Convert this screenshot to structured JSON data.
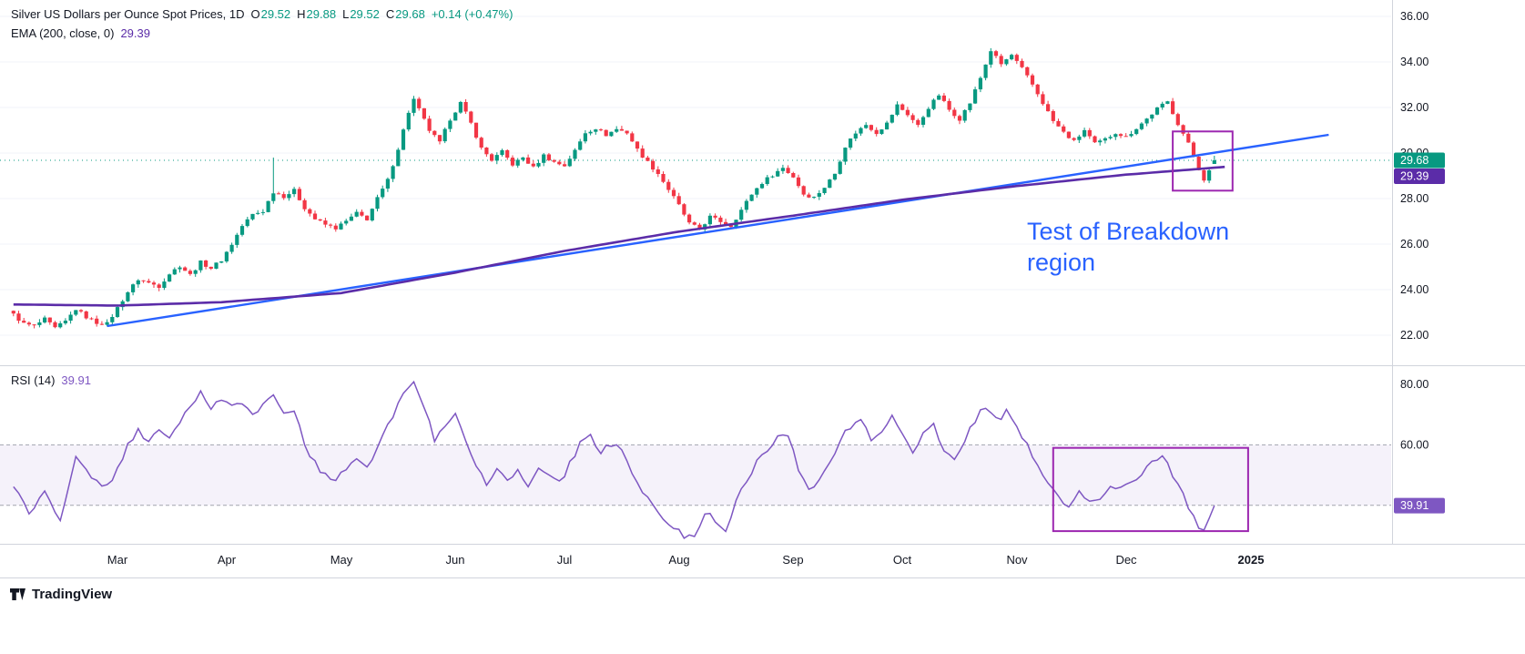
{
  "header": {
    "symbol_title": "Silver US Dollars per Ounce Spot Prices, 1D",
    "ohlc": {
      "open_label": "O",
      "open": "29.52",
      "high_label": "H",
      "high": "29.88",
      "low_label": "L",
      "low": "29.52",
      "close_label": "C",
      "close": "29.68",
      "change": "+0.14 (+0.47%)"
    },
    "ema_label": "EMA (200, close, 0)",
    "ema_value": "29.39"
  },
  "rsi_header": {
    "label": "RSI (14)",
    "value": "39.91"
  },
  "footer": {
    "brand": "TradingView"
  },
  "colors": {
    "up": "#089981",
    "down": "#F23645",
    "trendline": "#2962FF",
    "ema": "#5B2CA8",
    "rsi_line": "#7E57C2",
    "rsi_band_fill": "rgba(126,87,194,0.08)",
    "band_dash": "#A1A4AE",
    "annotation_box": "#9C27B0",
    "annotation_text": "#2962FF",
    "grid": "#F0F3FA",
    "axis_text": "#131722",
    "separator": "#D1D4DC"
  },
  "chart_data": {
    "type": "candlestick",
    "title": "Silver US Dollars per Ounce Spot Prices, 1D",
    "timeframe": "1D",
    "last_candle": {
      "open": 29.52,
      "high": 29.88,
      "low": 29.52,
      "close": 29.68,
      "change": 0.14,
      "change_pct": 0.47
    },
    "current_price": 29.68,
    "days_total": 231,
    "price_axis": {
      "ticks": [
        22,
        24,
        26,
        28,
        30,
        32,
        34,
        36
      ],
      "ylim": [
        20.64,
        36.72
      ]
    },
    "x_axis": [
      {
        "label": "Mar",
        "day": 20
      },
      {
        "label": "Apr",
        "day": 41
      },
      {
        "label": "May",
        "day": 63
      },
      {
        "label": "Jun",
        "day": 85
      },
      {
        "label": "Jul",
        "day": 106
      },
      {
        "label": "Aug",
        "day": 128
      },
      {
        "label": "Sep",
        "day": 150
      },
      {
        "label": "Oct",
        "day": 171
      },
      {
        "label": "Nov",
        "day": 193
      },
      {
        "label": "Dec",
        "day": 214
      },
      {
        "label": "2025",
        "day": 238,
        "bold": true
      }
    ],
    "close_path": [
      [
        0,
        22.9
      ],
      [
        2,
        22.5
      ],
      [
        4,
        22.4
      ],
      [
        6,
        22.7
      ],
      [
        8,
        22.3
      ],
      [
        10,
        22.6
      ],
      [
        12,
        23.15
      ],
      [
        14,
        22.8
      ],
      [
        16,
        22.55
      ],
      [
        18,
        22.5
      ],
      [
        20,
        23.2
      ],
      [
        22,
        23.9
      ],
      [
        24,
        24.45
      ],
      [
        26,
        24.3
      ],
      [
        28,
        24.15
      ],
      [
        30,
        24.7
      ],
      [
        32,
        25.05
      ],
      [
        34,
        24.65
      ],
      [
        36,
        25.2
      ],
      [
        38,
        24.95
      ],
      [
        40,
        25.3
      ],
      [
        42,
        26.0
      ],
      [
        44,
        26.8
      ],
      [
        46,
        27.3
      ],
      [
        48,
        27.45
      ],
      [
        50,
        28.3
      ],
      [
        52,
        28.1
      ],
      [
        54,
        28.35
      ],
      [
        56,
        27.6
      ],
      [
        58,
        27.1
      ],
      [
        60,
        26.85
      ],
      [
        62,
        26.7
      ],
      [
        64,
        27.0
      ],
      [
        66,
        27.35
      ],
      [
        68,
        27.1
      ],
      [
        70,
        28.0
      ],
      [
        72,
        28.8
      ],
      [
        74,
        30.2
      ],
      [
        76,
        31.8
      ],
      [
        77,
        32.35
      ],
      [
        78,
        31.9
      ],
      [
        80,
        31.0
      ],
      [
        82,
        30.45
      ],
      [
        84,
        31.5
      ],
      [
        86,
        32.2
      ],
      [
        88,
        31.3
      ],
      [
        90,
        30.2
      ],
      [
        92,
        29.7
      ],
      [
        94,
        30.05
      ],
      [
        96,
        29.5
      ],
      [
        98,
        29.8
      ],
      [
        100,
        29.35
      ],
      [
        102,
        29.9
      ],
      [
        104,
        29.6
      ],
      [
        106,
        29.45
      ],
      [
        108,
        30.1
      ],
      [
        110,
        30.9
      ],
      [
        112,
        31.1
      ],
      [
        114,
        30.8
      ],
      [
        116,
        31.05
      ],
      [
        118,
        30.9
      ],
      [
        120,
        30.15
      ],
      [
        122,
        29.6
      ],
      [
        124,
        29.1
      ],
      [
        126,
        28.4
      ],
      [
        128,
        27.7
      ],
      [
        130,
        26.9
      ],
      [
        132,
        26.65
      ],
      [
        134,
        27.2
      ],
      [
        136,
        27.0
      ],
      [
        138,
        26.8
      ],
      [
        140,
        27.5
      ],
      [
        142,
        28.2
      ],
      [
        144,
        28.7
      ],
      [
        146,
        29.05
      ],
      [
        148,
        29.35
      ],
      [
        150,
        28.95
      ],
      [
        152,
        28.2
      ],
      [
        154,
        28.05
      ],
      [
        156,
        28.5
      ],
      [
        158,
        29.1
      ],
      [
        160,
        30.3
      ],
      [
        162,
        30.9
      ],
      [
        164,
        31.25
      ],
      [
        166,
        30.9
      ],
      [
        168,
        31.3
      ],
      [
        170,
        32.1
      ],
      [
        172,
        31.7
      ],
      [
        174,
        31.2
      ],
      [
        176,
        32.0
      ],
      [
        178,
        32.55
      ],
      [
        180,
        31.9
      ],
      [
        182,
        31.5
      ],
      [
        184,
        32.2
      ],
      [
        186,
        33.3
      ],
      [
        188,
        34.5
      ],
      [
        190,
        33.9
      ],
      [
        192,
        34.3
      ],
      [
        194,
        33.7
      ],
      [
        196,
        33.0
      ],
      [
        198,
        32.2
      ],
      [
        200,
        31.4
      ],
      [
        202,
        30.9
      ],
      [
        204,
        30.5
      ],
      [
        206,
        31.0
      ],
      [
        208,
        30.4
      ],
      [
        210,
        30.6
      ],
      [
        212,
        30.9
      ],
      [
        214,
        30.7
      ],
      [
        216,
        31.1
      ],
      [
        218,
        31.5
      ],
      [
        220,
        31.95
      ],
      [
        222,
        32.25
      ],
      [
        224,
        31.3
      ],
      [
        226,
        30.4
      ],
      [
        228,
        29.3
      ],
      [
        229,
        28.85
      ],
      [
        230,
        29.2
      ],
      [
        231,
        29.68
      ]
    ],
    "spike_wicks": [
      [
        50,
        29.8
      ]
    ],
    "ema": {
      "period": 200,
      "source": "close",
      "offset": 0,
      "value": 29.39,
      "path": [
        [
          0,
          23.35
        ],
        [
          20,
          23.3
        ],
        [
          40,
          23.45
        ],
        [
          63,
          23.85
        ],
        [
          85,
          24.75
        ],
        [
          106,
          25.7
        ],
        [
          128,
          26.55
        ],
        [
          150,
          27.25
        ],
        [
          171,
          27.95
        ],
        [
          193,
          28.55
        ],
        [
          214,
          29.05
        ],
        [
          233,
          29.39
        ]
      ]
    },
    "trendline": {
      "path": [
        [
          18,
          22.4
        ],
        [
          253,
          30.8
        ]
      ]
    },
    "rsi": {
      "period": 14,
      "value": 39.91,
      "ylim": [
        27,
        86
      ],
      "axis_ticks": [
        80,
        60
      ],
      "band": [
        40,
        60
      ],
      "path": [
        [
          0,
          46
        ],
        [
          3,
          38
        ],
        [
          6,
          44
        ],
        [
          9,
          36
        ],
        [
          12,
          56
        ],
        [
          15,
          50
        ],
        [
          18,
          46
        ],
        [
          20,
          52
        ],
        [
          22,
          60
        ],
        [
          24,
          65
        ],
        [
          26,
          60
        ],
        [
          28,
          66
        ],
        [
          30,
          62
        ],
        [
          32,
          68
        ],
        [
          34,
          73
        ],
        [
          36,
          77
        ],
        [
          38,
          72
        ],
        [
          40,
          75
        ],
        [
          42,
          72
        ],
        [
          44,
          74
        ],
        [
          46,
          70
        ],
        [
          48,
          74
        ],
        [
          50,
          77
        ],
        [
          52,
          70
        ],
        [
          54,
          72
        ],
        [
          56,
          60
        ],
        [
          58,
          54
        ],
        [
          60,
          50
        ],
        [
          62,
          48
        ],
        [
          64,
          52
        ],
        [
          66,
          56
        ],
        [
          68,
          52
        ],
        [
          70,
          60
        ],
        [
          72,
          66
        ],
        [
          74,
          74
        ],
        [
          76,
          79
        ],
        [
          77,
          81
        ],
        [
          79,
          72
        ],
        [
          81,
          62
        ],
        [
          83,
          67
        ],
        [
          85,
          71
        ],
        [
          87,
          61
        ],
        [
          89,
          52
        ],
        [
          91,
          47
        ],
        [
          93,
          53
        ],
        [
          95,
          48
        ],
        [
          97,
          52
        ],
        [
          99,
          46
        ],
        [
          101,
          53
        ],
        [
          103,
          49
        ],
        [
          105,
          47
        ],
        [
          107,
          54
        ],
        [
          109,
          60
        ],
        [
          111,
          63
        ],
        [
          113,
          58
        ],
        [
          115,
          60
        ],
        [
          117,
          58
        ],
        [
          119,
          50
        ],
        [
          121,
          44
        ],
        [
          123,
          40
        ],
        [
          125,
          35
        ],
        [
          127,
          32
        ],
        [
          129,
          30
        ],
        [
          131,
          29
        ],
        [
          133,
          38
        ],
        [
          135,
          35
        ],
        [
          137,
          32
        ],
        [
          139,
          41
        ],
        [
          141,
          48
        ],
        [
          143,
          55
        ],
        [
          145,
          58
        ],
        [
          147,
          62
        ],
        [
          149,
          64
        ],
        [
          151,
          52
        ],
        [
          153,
          45
        ],
        [
          155,
          48
        ],
        [
          157,
          54
        ],
        [
          159,
          62
        ],
        [
          161,
          66
        ],
        [
          163,
          68
        ],
        [
          165,
          62
        ],
        [
          167,
          65
        ],
        [
          169,
          70
        ],
        [
          171,
          64
        ],
        [
          173,
          57
        ],
        [
          175,
          63
        ],
        [
          177,
          67
        ],
        [
          179,
          58
        ],
        [
          181,
          55
        ],
        [
          183,
          62
        ],
        [
          185,
          68
        ],
        [
          187,
          73
        ],
        [
          189,
          68
        ],
        [
          191,
          71
        ],
        [
          193,
          65
        ],
        [
          195,
          60
        ],
        [
          197,
          54
        ],
        [
          199,
          47
        ],
        [
          201,
          43
        ],
        [
          203,
          40
        ],
        [
          205,
          45
        ],
        [
          207,
          41
        ],
        [
          209,
          43
        ],
        [
          211,
          47
        ],
        [
          213,
          45
        ],
        [
          215,
          48
        ],
        [
          217,
          51
        ],
        [
          219,
          55
        ],
        [
          221,
          57
        ],
        [
          223,
          49
        ],
        [
          225,
          44
        ],
        [
          227,
          36
        ],
        [
          228,
          33
        ],
        [
          229,
          32
        ],
        [
          230,
          36
        ],
        [
          231,
          39.91
        ]
      ]
    },
    "annotations": {
      "text": "Test of Breakdown region",
      "price_box": {
        "day_from": 223,
        "day_to": 234.5,
        "price_from": 28.35,
        "price_to": 30.95
      },
      "rsi_box": {
        "day_from": 200,
        "day_to": 237.5,
        "rsi_from": 31.5,
        "rsi_to": 59
      }
    }
  }
}
